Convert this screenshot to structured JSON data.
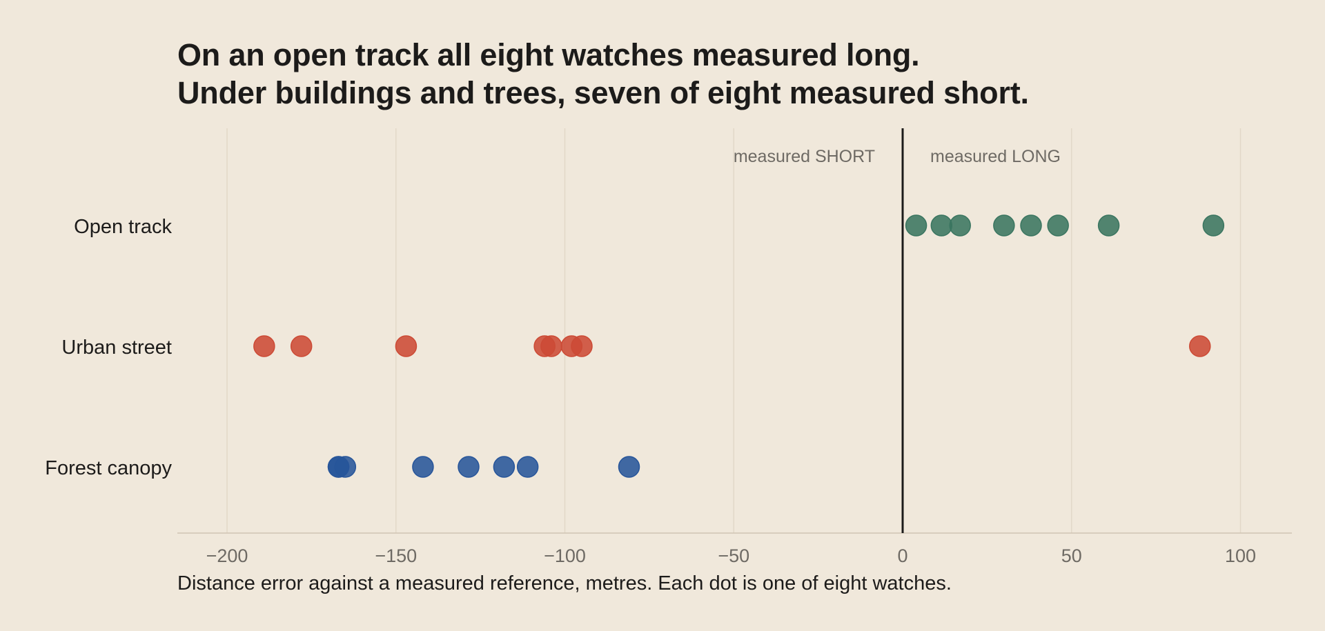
{
  "chart_data": {
    "type": "scatter",
    "title": [
      "On an open track all eight watches measured long.",
      "Under buildings and trees, seven of eight measured short."
    ],
    "xlabel": "Distance error against a measured reference, metres. Each dot is one of eight watches.",
    "xlim": [
      -215,
      115
    ],
    "xticks": [
      -200,
      -150,
      -100,
      -50,
      0,
      50,
      100
    ],
    "xtick_labels": [
      "−200",
      "−150",
      "−100",
      "−50",
      "0",
      "50",
      "100"
    ],
    "grid": true,
    "reference_line": 0,
    "annotations": [
      {
        "text": "measured SHORT",
        "side": "left"
      },
      {
        "text": "measured LONG",
        "side": "right"
      }
    ],
    "categories": [
      "Open track",
      "Urban street",
      "Forest canopy"
    ],
    "series": [
      {
        "category": "Open track",
        "color": "#3a7560",
        "values": [
          4,
          11.5,
          17,
          30,
          38,
          46,
          61,
          92
        ]
      },
      {
        "category": "Urban street",
        "color": "#cc4a35",
        "values": [
          -189,
          -178,
          -147,
          -106,
          -104,
          -98,
          -95,
          88
        ]
      },
      {
        "category": "Forest canopy",
        "color": "#27559a",
        "values": [
          -167,
          -165,
          -142,
          -128.5,
          -118,
          -111,
          -81,
          -167
        ]
      }
    ]
  }
}
